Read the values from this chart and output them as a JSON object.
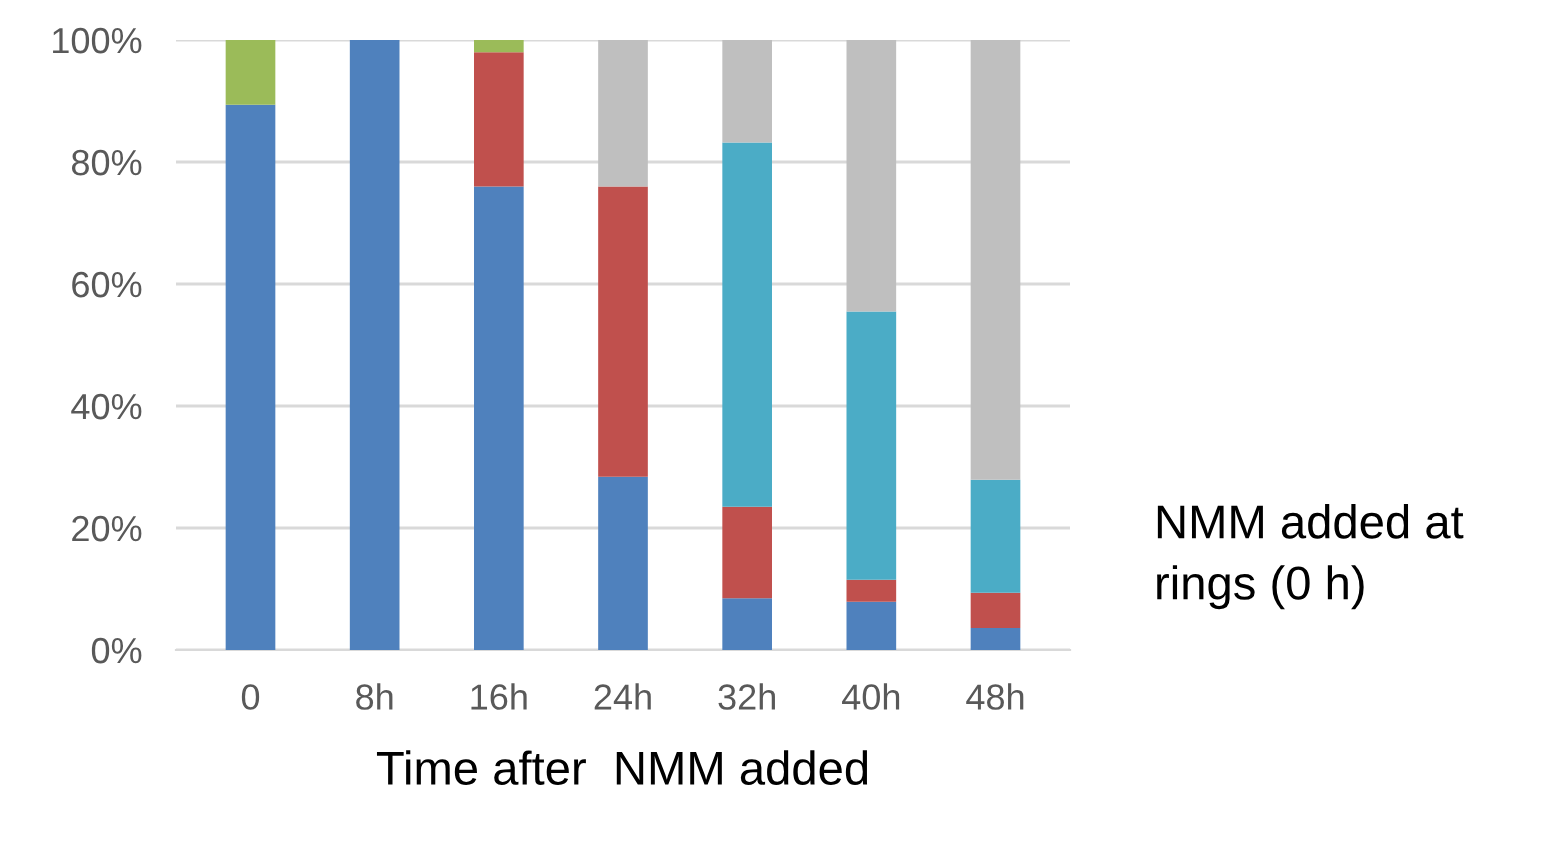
{
  "chart_data": {
    "type": "bar",
    "stacked": true,
    "xlabel": "Time after  NMM added",
    "categories": [
      "0",
      "8h",
      "16h",
      "24h",
      "32h",
      "40h",
      "48h"
    ],
    "series": [
      {
        "color": "#4f81bd",
        "values": [
          89.4,
          100,
          76,
          28.4,
          8.5,
          7.9,
          3.6
        ]
      },
      {
        "color": "#c0504d",
        "values": [
          0,
          0,
          22,
          47.6,
          15,
          3.6,
          5.8
        ]
      },
      {
        "color": "#4bacc6",
        "values": [
          0,
          0,
          0,
          0,
          59.7,
          44,
          18.5
        ]
      },
      {
        "color": "#bfbfbf",
        "values": [
          0,
          0,
          0,
          24,
          16.8,
          44.5,
          72.1
        ]
      },
      {
        "color": "#9bbb59",
        "values": [
          10.6,
          0,
          2,
          0,
          0,
          0,
          0
        ]
      }
    ],
    "ylim": [
      0,
      100
    ],
    "yticks": [
      {
        "value": 0,
        "label": "0%"
      },
      {
        "value": 20,
        "label": "20%"
      },
      {
        "value": 40,
        "label": "40%"
      },
      {
        "value": 60,
        "label": "60%"
      },
      {
        "value": 80,
        "label": "80%"
      },
      {
        "value": 100,
        "label": "100%"
      }
    ],
    "grid": "y",
    "legend": false,
    "annotations": [
      "NMM added at\nrings (0 h)"
    ]
  }
}
